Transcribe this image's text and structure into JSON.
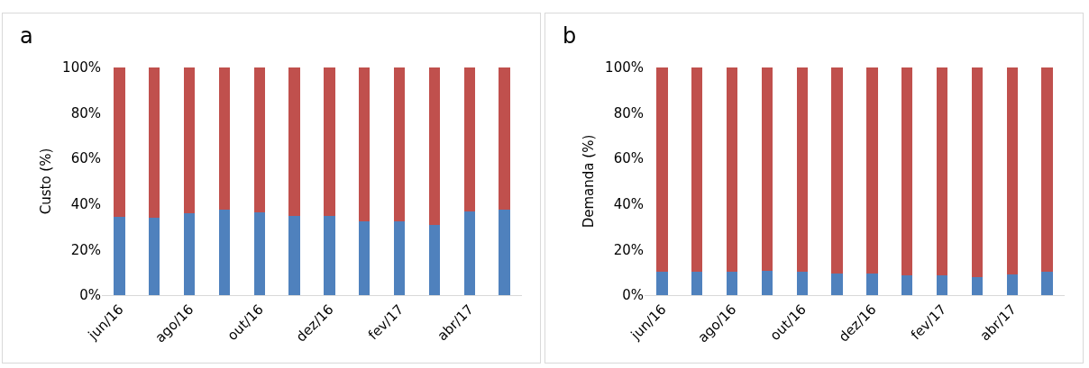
{
  "chart_data": [
    {
      "type": "bar",
      "stacked": true,
      "annotations": [
        "a"
      ],
      "ylabel": "Custo (%)",
      "categories": [
        "jun/16",
        null,
        "ago/16",
        null,
        "out/16",
        null,
        "dez/16",
        null,
        "fev/17",
        null,
        "abr/17",
        null
      ],
      "series": [
        {
          "color": "#4f81bd",
          "values": [
            34.3,
            34,
            36,
            37.7,
            36.4,
            34.6,
            34.6,
            32.6,
            32.6,
            30.9,
            36.9,
            37.7
          ]
        },
        {
          "color": "#c0504d",
          "values": [
            65.7,
            66,
            64,
            62.3,
            63.6,
            65.4,
            65.4,
            67.4,
            67.4,
            69.1,
            63.1,
            62.3
          ]
        }
      ],
      "ylim": [
        0,
        100
      ],
      "yticks": [
        {
          "value": 0,
          "label": "0%"
        },
        {
          "value": 20,
          "label": "20%"
        },
        {
          "value": 40,
          "label": "40%"
        },
        {
          "value": 60,
          "label": "60%"
        },
        {
          "value": 80,
          "label": "80%"
        },
        {
          "value": 100,
          "label": "100%"
        }
      ],
      "grid": false
    },
    {
      "type": "bar",
      "stacked": true,
      "annotations": [
        "b"
      ],
      "ylabel": "Demanda (%)",
      "categories": [
        "jun/16",
        null,
        "ago/16",
        null,
        "out/16",
        null,
        "dez/16",
        null,
        "fev/17",
        null,
        "abr/17",
        null
      ],
      "series": [
        {
          "color": "#4f81bd",
          "values": [
            10.3,
            10.1,
            10.3,
            10.6,
            10.1,
            9.3,
            9.3,
            8.5,
            8.5,
            7.8,
            9,
            10.1
          ]
        },
        {
          "color": "#c0504d",
          "values": [
            89.7,
            89.9,
            89.7,
            89.4,
            89.9,
            90.7,
            90.7,
            91.5,
            91.5,
            92.2,
            91,
            89.9
          ]
        }
      ],
      "ylim": [
        0,
        100
      ],
      "yticks": [
        {
          "value": 0,
          "label": "0%"
        },
        {
          "value": 20,
          "label": "20%"
        },
        {
          "value": 40,
          "label": "40%"
        },
        {
          "value": 60,
          "label": "60%"
        },
        {
          "value": 80,
          "label": "80%"
        },
        {
          "value": 100,
          "label": "100%"
        }
      ],
      "grid": false
    }
  ]
}
